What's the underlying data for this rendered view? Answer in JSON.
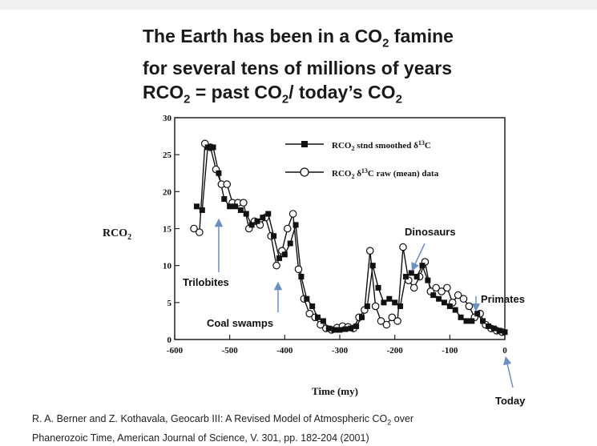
{
  "header": {
    "line1_pre": "The Earth has been in a CO",
    "line1_sub": "2",
    "line1_post": " famine",
    "line2": "for several tens of millions of years",
    "line3_a": "RCO",
    "line3_sub1": "2",
    "line3_b": " = past CO",
    "line3_sub2": "2",
    "line3_c": "/ today’s CO",
    "line3_sub3": "2"
  },
  "chart_data": {
    "type": "line",
    "xlabel": "Time (my)",
    "ylabel_main": "RCO",
    "ylabel_sub": "2",
    "xlim": [
      -600,
      0
    ],
    "ylim": [
      0,
      30
    ],
    "xticks": [
      -600,
      -500,
      -400,
      -300,
      -200,
      -100,
      0
    ],
    "yticks": [
      0,
      5,
      10,
      15,
      20,
      25,
      30
    ],
    "grid": false,
    "legend_position": "top-right",
    "series": [
      {
        "legend_main": "RCO",
        "legend_sub": "2",
        "legend_rest": " stnd smoothed δ",
        "legend_sup": "13",
        "legend_end": "C",
        "marker": "filled-square",
        "color": "#111111",
        "x": [
          -560,
          -550,
          -540,
          -530,
          -520,
          -510,
          -500,
          -490,
          -480,
          -470,
          -460,
          -450,
          -440,
          -430,
          -420,
          -410,
          -400,
          -390,
          -380,
          -370,
          -360,
          -350,
          -340,
          -330,
          -320,
          -310,
          -300,
          -290,
          -280,
          -270,
          -260,
          -250,
          -240,
          -230,
          -220,
          -210,
          -200,
          -190,
          -180,
          -170,
          -160,
          -150,
          -140,
          -130,
          -120,
          -110,
          -100,
          -90,
          -80,
          -70,
          -60,
          -50,
          -40,
          -30,
          -20,
          -10,
          0
        ],
        "y": [
          18,
          17.5,
          26,
          26,
          22.5,
          19,
          18,
          18,
          17.5,
          17,
          15.5,
          16,
          16.5,
          17,
          14,
          11,
          11.5,
          13,
          15.5,
          8.5,
          5.5,
          4.5,
          3,
          2.5,
          1.5,
          1.3,
          1.3,
          1.4,
          1.5,
          1.8,
          3,
          4.5,
          10,
          7,
          5,
          5.5,
          5,
          4.5,
          8.5,
          9,
          8.5,
          10,
          8,
          6,
          5.5,
          5,
          4.5,
          4,
          3,
          2.5,
          2.5,
          3.5,
          2.5,
          1.8,
          1.5,
          1.2,
          1
        ]
      },
      {
        "legend_main": "RCO",
        "legend_sub": "2",
        "legend_rest": " δ",
        "legend_sup": "13",
        "legend_end": "C raw (mean) data",
        "marker": "open-circle",
        "color": "#111111",
        "x": [
          -565,
          -555,
          -545,
          -535,
          -525,
          -515,
          -505,
          -495,
          -485,
          -475,
          -465,
          -455,
          -445,
          -435,
          -425,
          -415,
          -405,
          -395,
          -385,
          -375,
          -365,
          -355,
          -345,
          -335,
          -325,
          -315,
          -305,
          -295,
          -285,
          -275,
          -265,
          -255,
          -245,
          -235,
          -225,
          -215,
          -205,
          -195,
          -185,
          -175,
          -165,
          -155,
          -145,
          -135,
          -125,
          -115,
          -105,
          -95,
          -85,
          -75,
          -65,
          -55,
          -45,
          -35,
          -25,
          -15,
          -5
        ],
        "y": [
          15,
          14.5,
          26.5,
          26,
          23,
          21,
          21,
          18.5,
          18.5,
          18.5,
          15,
          16,
          15.5,
          16.5,
          14,
          10,
          12,
          15,
          17,
          9.5,
          5.5,
          3.5,
          3,
          2,
          1.5,
          1.3,
          1.6,
          1.8,
          1.7,
          1.5,
          3,
          4,
          12,
          4.5,
          2.5,
          2,
          3,
          2.5,
          12.5,
          8,
          7,
          8.5,
          10.5,
          6.5,
          7,
          6.5,
          7,
          5,
          6,
          5.5,
          4.5,
          3,
          3.5,
          2,
          1.5,
          1.2,
          1
        ]
      }
    ],
    "annotations": [
      {
        "label": "Trilobites",
        "x": -530
      },
      {
        "label": "Coal swamps",
        "x": -420
      },
      {
        "label": "Dinosaurs",
        "x": -145
      },
      {
        "label": "Primates",
        "x": -55
      },
      {
        "label": "Today",
        "x": 0
      }
    ]
  },
  "citation": {
    "line1_a": "R. A. Berner and Z. Kothavala, Geocarb III: A Revised Model of Atmospheric CO",
    "line1_sub": "2",
    "line1_b": " over",
    "line2": "Phanerozoic Time,  American Journal of Science, V. 301, pp. 182-204 (2001)"
  },
  "colors": {
    "annotation_arrow": "#6b8fc4",
    "axis": "#222222",
    "title_text": "#1a1a1a"
  }
}
